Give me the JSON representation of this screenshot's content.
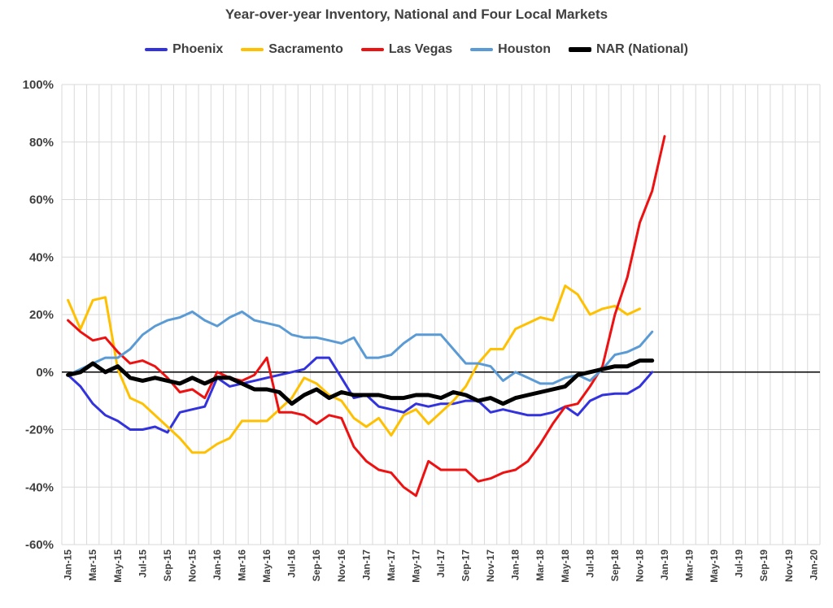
{
  "chart_data": {
    "type": "line",
    "title": "Year-over-year Inventory, National and Four Local Markets",
    "xlabel": "",
    "ylabel": "",
    "ylim": [
      -60,
      100
    ],
    "y_ticks": [
      "100%",
      "80%",
      "60%",
      "40%",
      "20%",
      "0%",
      "-20%",
      "-40%",
      "-60%"
    ],
    "grid": true,
    "legend_position": "top",
    "x_tick_labels": [
      "Jan-15",
      "Mar-15",
      "May-15",
      "Jul-15",
      "Sep-15",
      "Nov-15",
      "Jan-16",
      "Mar-16",
      "May-16",
      "Jul-16",
      "Sep-16",
      "Nov-16",
      "Jan-17",
      "Mar-17",
      "May-17",
      "Jul-17",
      "Sep-17",
      "Nov-17",
      "Jan-18",
      "Mar-18",
      "May-18",
      "Jul-18",
      "Sep-18",
      "Nov-18",
      "Jan-19",
      "Mar-19",
      "May-19",
      "Jul-19",
      "Sep-19",
      "Nov-19",
      "Jan-20"
    ],
    "x_tick_month_index": [
      0,
      2,
      4,
      6,
      8,
      10,
      12,
      14,
      16,
      18,
      20,
      22,
      24,
      26,
      28,
      30,
      32,
      34,
      36,
      38,
      40,
      42,
      44,
      46,
      48,
      50,
      52,
      54,
      56,
      58,
      60
    ],
    "series": [
      {
        "name": "Phoenix",
        "color": "#3333dd",
        "values": [
          -1,
          -5,
          -11,
          -15,
          -17,
          -20,
          -20,
          -19,
          -21,
          -14,
          -13,
          -12,
          -2,
          -5,
          -4,
          -3,
          -2,
          -1,
          0,
          1,
          5,
          5,
          -2,
          -9,
          -8,
          -12,
          -13,
          -14,
          -11,
          -12,
          -11,
          -11,
          -10,
          -10,
          -14,
          -13,
          -14,
          -15,
          -15,
          -14,
          -12,
          -15,
          -10,
          -8,
          -7.5,
          -7.5,
          -5,
          0
        ],
        "start_month_index": 0
      },
      {
        "name": "Sacramento",
        "color": "#ffc000",
        "values": [
          25,
          15,
          25,
          26,
          1,
          -9,
          -11,
          -15,
          -19,
          -23,
          -28,
          -28,
          -25,
          -23,
          -17,
          -17,
          -17,
          -13,
          -9,
          -2,
          -4,
          -8,
          -10,
          -16,
          -19,
          -16,
          -22,
          -15,
          -13,
          -18,
          -14,
          -10,
          -5,
          3,
          8,
          8,
          15,
          17,
          19,
          18,
          30,
          27,
          20,
          22,
          23,
          20,
          22
        ],
        "start_month_index": 0
      },
      {
        "name": "Las Vegas",
        "color": "#ee1111",
        "values": [
          18,
          14,
          11,
          12,
          7,
          3,
          4,
          2,
          -2,
          -7,
          -6,
          -9,
          0,
          -2,
          -3,
          -1,
          5,
          -14,
          -14,
          -15,
          -18,
          -15,
          -16,
          -26,
          -31,
          -34,
          -35,
          -40,
          -43,
          -31,
          -34,
          -34,
          -34,
          -38,
          -37,
          -35,
          -34,
          -31,
          -25,
          -18,
          -12,
          -11,
          -5,
          2,
          20,
          33,
          52,
          63,
          82
        ],
        "start_month_index": 0
      },
      {
        "name": "Houston",
        "color": "#5b9bd5",
        "values": [
          -1,
          1,
          3,
          5,
          5,
          8,
          13,
          16,
          18,
          19,
          21,
          18,
          16,
          19,
          21,
          18,
          17,
          16,
          13,
          12,
          12,
          11,
          10,
          12,
          5,
          5,
          6,
          10,
          13,
          13,
          13,
          8,
          3,
          3,
          2,
          -3,
          0,
          -2,
          -4,
          -4,
          -2,
          -1,
          -3,
          1,
          6,
          7,
          9,
          14
        ],
        "start_month_index": 0
      },
      {
        "name": "NAR (National)",
        "color": "#000000",
        "values": [
          -1,
          0,
          3,
          0,
          2,
          -2,
          -3,
          -2,
          -3,
          -4,
          -2,
          -4,
          -2,
          -2,
          -4,
          -6,
          -6,
          -7,
          -11,
          -8,
          -6,
          -9,
          -7,
          -8,
          -8,
          -8,
          -9,
          -9,
          -8,
          -8,
          -9,
          -7,
          -8,
          -10,
          -9,
          -11,
          -9,
          -8,
          -7,
          -6,
          -5,
          -1,
          0,
          1,
          2,
          2,
          4,
          4
        ],
        "start_month_index": 0
      }
    ]
  }
}
